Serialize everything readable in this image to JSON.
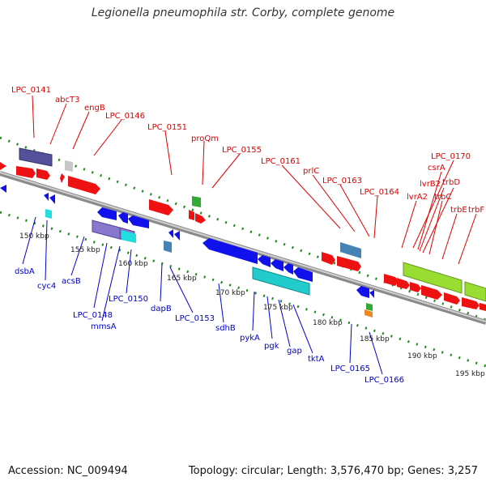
{
  "title": "Legionella pneumophila str. Corby, complete genome",
  "accession_text": "Accession: NC_009494",
  "summary_text": "Topology: circular; Length: 3,576,470 bp; Genes: 3,257",
  "colors": {
    "forward": "#ee1111",
    "reverse": "#1111ee",
    "label_forward": "#dd0000",
    "label_reverse": "#0000cc",
    "backbone": "#b4b4b4",
    "dots": "#228822"
  },
  "scale_labels": [
    "150 kbp",
    "155 kbp",
    "160 kbp",
    "165 kbp",
    "170 kbp",
    "175 kbp",
    "180 kbp",
    "185 kbp",
    "190 kbp",
    "195 kbp"
  ],
  "top_gene_labels": [
    "LPC_0141",
    "abcT3",
    "engB",
    "LPC_0146",
    "LPC_0151",
    "proQm",
    "LPC_0155",
    "LPC_0161",
    "prlC",
    "LPC_0163",
    "LPC_0164",
    "LPC_0170",
    "csrA",
    "lvrB2",
    "trbD",
    "lvrA2",
    "trbC",
    "trbE",
    "trbF"
  ],
  "bottom_gene_labels": [
    "dsbA",
    "cyc4",
    "acsB",
    "LPC_0148",
    "mmsA",
    "LPC_0150",
    "dapB",
    "LPC_0153",
    "sdhB",
    "pykA",
    "pgk",
    "gap",
    "tktA",
    "LPC_0165",
    "LPC_0166"
  ]
}
